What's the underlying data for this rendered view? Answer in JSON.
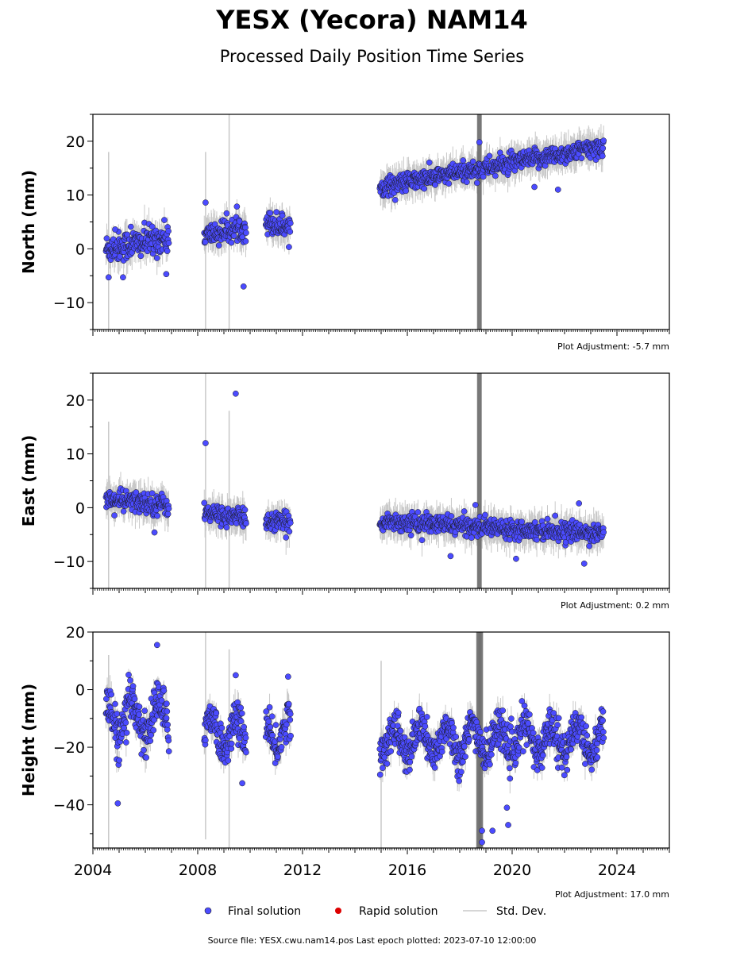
{
  "title": "YESX (Yecora) NAM14",
  "subtitle": "Processed Daily Position Time Series",
  "colors": {
    "final": "#4b4bff",
    "rapid": "#dd0000",
    "stddev": "#c8c8c8",
    "stddev_dense": "#707070"
  },
  "legend": {
    "items": [
      {
        "label": "Final solution",
        "marker": "dot",
        "color": "#4b4bff"
      },
      {
        "label": "Rapid solution",
        "marker": "dot",
        "color": "#dd0000"
      },
      {
        "label": "Std. Dev.",
        "marker": "line",
        "color": "#c8c8c8"
      }
    ]
  },
  "footer": "Source file: YESX.cwu.nam14.pos  Last epoch plotted: 2023-07-10 12:00:00",
  "chart_data": [
    {
      "type": "scatter",
      "ylabel": "North (mm)",
      "ylim": [
        -15,
        25
      ],
      "yticks": [
        -10,
        0,
        10,
        20
      ],
      "xlim": [
        2004.0,
        2026.0
      ],
      "xticks": [
        2004,
        2008,
        2012,
        2016,
        2020,
        2024
      ],
      "show_x_tick_labels": false,
      "adjustment": "Plot Adjustment: -5.7 mm",
      "series": [
        {
          "x": 2004.5,
          "y": 0,
          "spread": 2.5,
          "mode": "cluster",
          "x_end": 2006.9,
          "y_end": 2.0
        },
        {
          "x": 2008.25,
          "y": 2.5,
          "spread": 2.0,
          "mode": "cluster",
          "x_end": 2009.85,
          "y_end": 4.0
        },
        {
          "x": 2010.6,
          "y": 5.0,
          "spread": 2.0,
          "mode": "cluster",
          "x_end": 2011.55,
          "y_end": 4.0
        },
        {
          "x": 2014.95,
          "y": 11.5,
          "spread": 1.6,
          "mode": "cluster",
          "x_end": 2023.5,
          "y_end": 19.0
        }
      ],
      "outliers": [
        {
          "x": 2004.6,
          "y": -5.3
        },
        {
          "x": 2004.85,
          "y": 3.6
        },
        {
          "x": 2005.15,
          "y": -5.3
        },
        {
          "x": 2005.45,
          "y": 4.1
        },
        {
          "x": 2006.8,
          "y": -4.7
        },
        {
          "x": 2008.3,
          "y": 8.6
        },
        {
          "x": 2009.75,
          "y": -7.0
        },
        {
          "x": 2018.75,
          "y": 19.8
        },
        {
          "x": 2020.85,
          "y": 11.5
        },
        {
          "x": 2021.75,
          "y": 11.0
        }
      ],
      "stddev_spikes": [
        {
          "x": 2004.6,
          "y0": -15,
          "y1": 18
        },
        {
          "x": 2008.3,
          "y0": -15,
          "y1": 18
        },
        {
          "x": 2009.2,
          "y0": -15,
          "y1": 25
        },
        {
          "x": 2018.75,
          "y0": -15,
          "y1": 25,
          "dense": true
        }
      ]
    },
    {
      "type": "scatter",
      "ylabel": "East (mm)",
      "ylim": [
        -15,
        25
      ],
      "yticks": [
        -10,
        0,
        10,
        20
      ],
      "xlim": [
        2004.0,
        2026.0
      ],
      "xticks": [
        2004,
        2008,
        2012,
        2016,
        2020,
        2024
      ],
      "show_x_tick_labels": false,
      "adjustment": "Plot Adjustment: 0.2 mm",
      "series": [
        {
          "x": 2004.5,
          "y": 1.5,
          "spread": 1.8,
          "mode": "cluster",
          "x_end": 2006.9,
          "y_end": 0.5
        },
        {
          "x": 2008.25,
          "y": -1.0,
          "spread": 1.6,
          "mode": "cluster",
          "x_end": 2009.85,
          "y_end": -2.0
        },
        {
          "x": 2010.6,
          "y": -2.5,
          "spread": 1.6,
          "mode": "cluster",
          "x_end": 2011.55,
          "y_end": -3.0
        },
        {
          "x": 2014.95,
          "y": -2.5,
          "spread": 1.5,
          "mode": "cluster",
          "x_end": 2023.5,
          "y_end": -4.8
        }
      ],
      "outliers": [
        {
          "x": 2008.3,
          "y": 12.0
        },
        {
          "x": 2009.45,
          "y": 21.2
        },
        {
          "x": 2006.35,
          "y": -4.6
        },
        {
          "x": 2017.65,
          "y": -9.0
        },
        {
          "x": 2020.15,
          "y": -9.5
        },
        {
          "x": 2022.75,
          "y": -10.4
        },
        {
          "x": 2022.55,
          "y": 0.8
        },
        {
          "x": 2018.6,
          "y": 0.5
        }
      ],
      "stddev_spikes": [
        {
          "x": 2004.6,
          "y0": -15,
          "y1": 16
        },
        {
          "x": 2008.3,
          "y0": -15,
          "y1": 25
        },
        {
          "x": 2009.2,
          "y0": -15,
          "y1": 18
        },
        {
          "x": 2018.75,
          "y0": -15,
          "y1": 25,
          "dense": true
        }
      ]
    },
    {
      "type": "scatter",
      "ylabel": "Height (mm)",
      "ylim": [
        -55,
        20
      ],
      "yticks": [
        -40,
        -20,
        0,
        20
      ],
      "xlim": [
        2004.0,
        2026.0
      ],
      "xticks": [
        2004,
        2008,
        2012,
        2016,
        2020,
        2024
      ],
      "show_x_tick_labels": true,
      "adjustment": "Plot Adjustment: 17.0 mm",
      "series": [
        {
          "x": 2004.5,
          "y": -10,
          "spread": 7.0,
          "mode": "seasonal",
          "x_end": 2006.9,
          "y_end": -10
        },
        {
          "x": 2008.25,
          "y": -14,
          "spread": 6.0,
          "mode": "seasonal",
          "x_end": 2009.85,
          "y_end": -16
        },
        {
          "x": 2010.6,
          "y": -16,
          "spread": 6.0,
          "mode": "seasonal",
          "x_end": 2011.55,
          "y_end": -14
        },
        {
          "x": 2014.95,
          "y": -18,
          "spread": 6.0,
          "mode": "seasonal",
          "x_end": 2023.5,
          "y_end": -17
        }
      ],
      "outliers": [
        {
          "x": 2004.95,
          "y": -39.5
        },
        {
          "x": 2006.45,
          "y": 15.5
        },
        {
          "x": 2009.45,
          "y": 5.0
        },
        {
          "x": 2011.45,
          "y": 4.5
        },
        {
          "x": 2018.85,
          "y": -49.0
        },
        {
          "x": 2018.85,
          "y": -53.0
        },
        {
          "x": 2019.25,
          "y": -49.0
        },
        {
          "x": 2019.8,
          "y": -41.0
        },
        {
          "x": 2019.85,
          "y": -47.0
        },
        {
          "x": 2009.7,
          "y": -32.5
        }
      ],
      "stddev_spikes": [
        {
          "x": 2004.6,
          "y0": -55,
          "y1": 12
        },
        {
          "x": 2008.3,
          "y0": -52,
          "y1": 20
        },
        {
          "x": 2009.2,
          "y0": -55,
          "y1": 14
        },
        {
          "x": 2015.0,
          "y0": -55,
          "y1": 10
        },
        {
          "x": 2018.72,
          "y0": -55,
          "y1": 20,
          "dense": true
        },
        {
          "x": 2018.8,
          "y0": -55,
          "y1": 20,
          "dense": true
        }
      ]
    }
  ]
}
